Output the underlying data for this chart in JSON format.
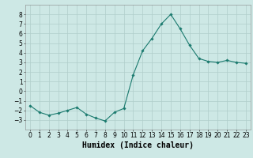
{
  "x": [
    0,
    1,
    2,
    3,
    4,
    5,
    6,
    7,
    8,
    9,
    10,
    11,
    12,
    13,
    14,
    15,
    16,
    17,
    18,
    19,
    20,
    21,
    22,
    23
  ],
  "y": [
    -1.5,
    -2.2,
    -2.5,
    -2.3,
    -2.0,
    -1.7,
    -2.4,
    -2.8,
    -3.1,
    -2.2,
    -1.8,
    1.7,
    4.2,
    5.5,
    7.0,
    8.0,
    6.5,
    4.8,
    3.4,
    3.1,
    3.0,
    3.2,
    3.0,
    2.9
  ],
  "xlim": [
    -0.5,
    23.5
  ],
  "ylim": [
    -4,
    9
  ],
  "yticks": [
    -3,
    -2,
    -1,
    0,
    1,
    2,
    3,
    4,
    5,
    6,
    7,
    8
  ],
  "xticks": [
    0,
    1,
    2,
    3,
    4,
    5,
    6,
    7,
    8,
    9,
    10,
    11,
    12,
    13,
    14,
    15,
    16,
    17,
    18,
    19,
    20,
    21,
    22,
    23
  ],
  "xlabel": "Humidex (Indice chaleur)",
  "line_color": "#1a7a6e",
  "marker": "D",
  "marker_size": 1.8,
  "bg_color": "#cde8e5",
  "grid_color": "#b0ceca",
  "xlabel_fontsize": 7,
  "tick_fontsize": 5.5
}
